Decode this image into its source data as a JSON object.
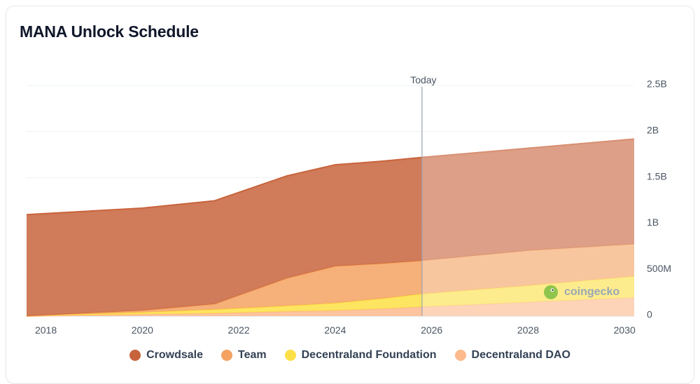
{
  "chart_data": {
    "type": "area",
    "stacked": true,
    "title": "MANA Unlock Schedule",
    "x_ticks": [
      "2018",
      "2020",
      "2022",
      "2024",
      "2026",
      "2028",
      "2030"
    ],
    "y_ticks": [
      "0",
      "500M",
      "1B",
      "1.5B",
      "2B",
      "2.5B"
    ],
    "x_range": [
      2017.6,
      2030.2
    ],
    "y_range": [
      0,
      2500
    ],
    "y_unit": "millions of MANA",
    "marker": {
      "label": "Today",
      "x": 2025.8
    },
    "x": [
      2017.6,
      2020.0,
      2021.5,
      2023.0,
      2024.0,
      2025.0,
      2025.8,
      2028.0,
      2030.2
    ],
    "series": [
      {
        "name": "Decentraland DAO",
        "color": "#fdba8c",
        "values": [
          0,
          20,
          30,
          50,
          60,
          80,
          100,
          150,
          200
        ]
      },
      {
        "name": "Decentraland Foundation",
        "color": "#fde047",
        "values": [
          0,
          20,
          40,
          60,
          80,
          110,
          140,
          180,
          230
        ]
      },
      {
        "name": "Team",
        "color": "#f4a261",
        "values": [
          0,
          20,
          60,
          300,
          400,
          380,
          360,
          380,
          350
        ]
      },
      {
        "name": "Crowdsale",
        "color": "#c8643c",
        "values": [
          1100,
          1110,
          1120,
          1110,
          1100,
          1110,
          1120,
          1110,
          1140
        ]
      }
    ]
  },
  "legend": [
    {
      "label": "Crowdsale",
      "color": "#c8643c"
    },
    {
      "label": "Team",
      "color": "#f4a261"
    },
    {
      "label": "Decentraland Foundation",
      "color": "#fde047"
    },
    {
      "label": "Decentraland DAO",
      "color": "#fdba8c"
    }
  ],
  "watermark": {
    "text": "coingecko"
  }
}
